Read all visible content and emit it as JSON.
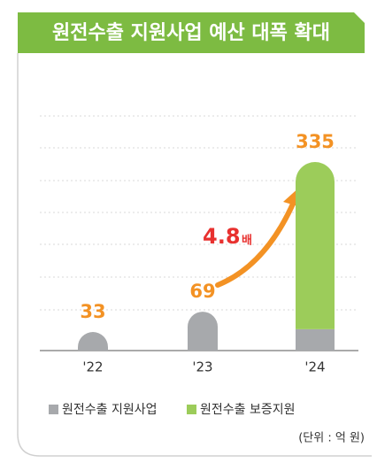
{
  "chart_data": {
    "type": "stacked_bar",
    "title": "원전수출 지원사업 예산 대폭 확대",
    "categories": [
      "'22",
      "'23",
      "'24"
    ],
    "series": [
      {
        "name": "원전수출 지원사업",
        "color": "#a7a9ac",
        "values": [
          33,
          69,
          38
        ]
      },
      {
        "name": "원전수출 보증지원",
        "color": "#9ccc5a",
        "values": [
          null,
          null,
          297
        ]
      }
    ],
    "totals": [
      33,
      69,
      335
    ],
    "annotation": {
      "value": "4.8",
      "unit": "배"
    },
    "unit_note": "(단위 : 억 원)",
    "ylim": [
      0,
      350
    ]
  }
}
